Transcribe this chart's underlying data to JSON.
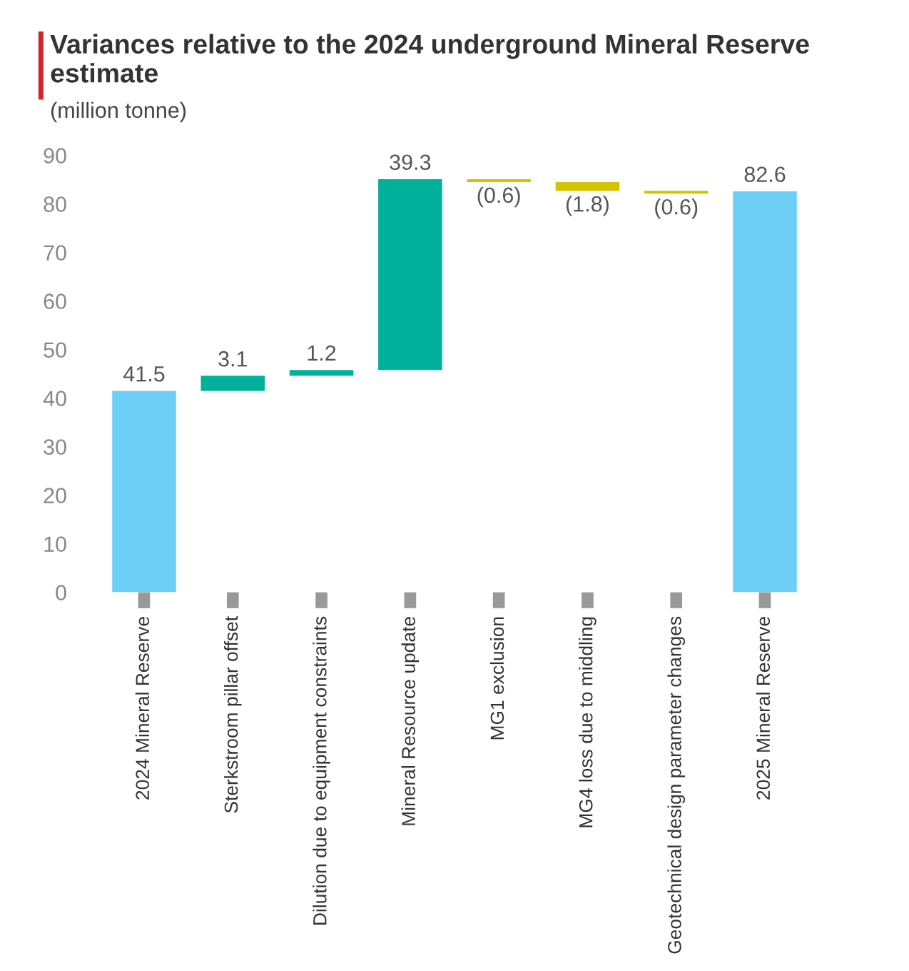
{
  "chart_data": {
    "type": "bar",
    "title": "Variances relative to the 2024 underground Mineral Reserve estimate",
    "subtitle": "(million tonne)",
    "categories": [
      "2024 Mineral Reserve",
      "Sterkstroom pillar offset",
      "Dilution due to equipment constraints",
      "Mineral Resource update",
      "MG1 exclusion",
      "MG4 loss due to middling",
      "Geotechnical design parameter changes",
      "2025 Mineral Reserve"
    ],
    "values": [
      41.5,
      3.1,
      1.2,
      39.3,
      -0.6,
      -1.8,
      -0.6,
      82.6
    ],
    "base": [
      0,
      41.5,
      44.6,
      45.8,
      85.1,
      84.5,
      82.7,
      0
    ],
    "colors": [
      "#6dcff6",
      "#00b09b",
      "#00b09b",
      "#00b09b",
      "#d4c300",
      "#d4c300",
      "#d4c300",
      "#6dcff6"
    ],
    "value_labels": [
      "41.5",
      "3.1",
      "1.2",
      "39.3",
      "(0.6)",
      "(1.8)",
      "(0.6)",
      "82.6"
    ],
    "ylim": [
      0,
      90
    ],
    "yticks": [
      0,
      10,
      20,
      30,
      40,
      50,
      60,
      70,
      80,
      90
    ],
    "grid": false,
    "legend": false
  }
}
